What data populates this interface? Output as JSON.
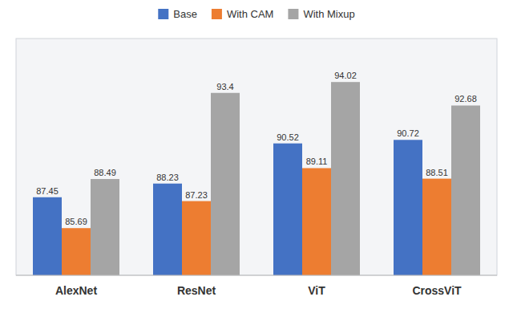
{
  "chart_data": {
    "type": "bar",
    "categories": [
      "AlexNet",
      "ResNet",
      "ViT",
      "CrossViT"
    ],
    "series": [
      {
        "name": "Base",
        "color": "#4472C4",
        "values": [
          87.45,
          88.23,
          90.52,
          90.72
        ]
      },
      {
        "name": "With CAM",
        "color": "#ED7D31",
        "values": [
          85.69,
          87.23,
          89.11,
          88.51
        ]
      },
      {
        "name": "With Mixup",
        "color": "#A5A5A5",
        "values": [
          88.49,
          93.4,
          94.02,
          92.68
        ]
      }
    ],
    "ylim": [
      83.0,
      96.5
    ],
    "grid": false,
    "legend": "top",
    "data_labels": true,
    "tick_labels": "x"
  }
}
